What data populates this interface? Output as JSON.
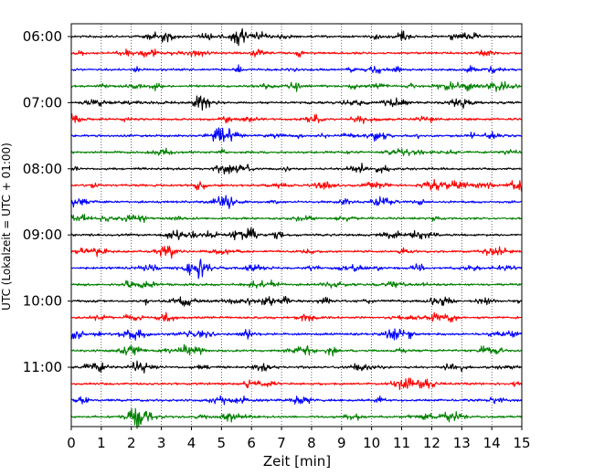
{
  "chart_data": {
    "type": "line",
    "title": "",
    "xlabel": "Zeit  [min]",
    "ylabel": "UTC (Lokalzeit = UTC + 01:00)",
    "xlim": [
      0,
      15
    ],
    "x_ticks": [
      "0",
      "1",
      "2",
      "3",
      "4",
      "5",
      "6",
      "7",
      "8",
      "9",
      "10",
      "11",
      "12",
      "13",
      "14",
      "15"
    ],
    "y_tick_labels": [
      "06:00",
      "07:00",
      "08:00",
      "09:00",
      "10:00",
      "11:00"
    ],
    "grid": "vertical dotted at each minute",
    "trace_interval_min": 15,
    "traces_per_hour": 4,
    "start_time": "06:00",
    "trace_count": 24,
    "series_colors": [
      "#000000",
      "#ff0000",
      "#0000ff",
      "#008000"
    ]
  }
}
